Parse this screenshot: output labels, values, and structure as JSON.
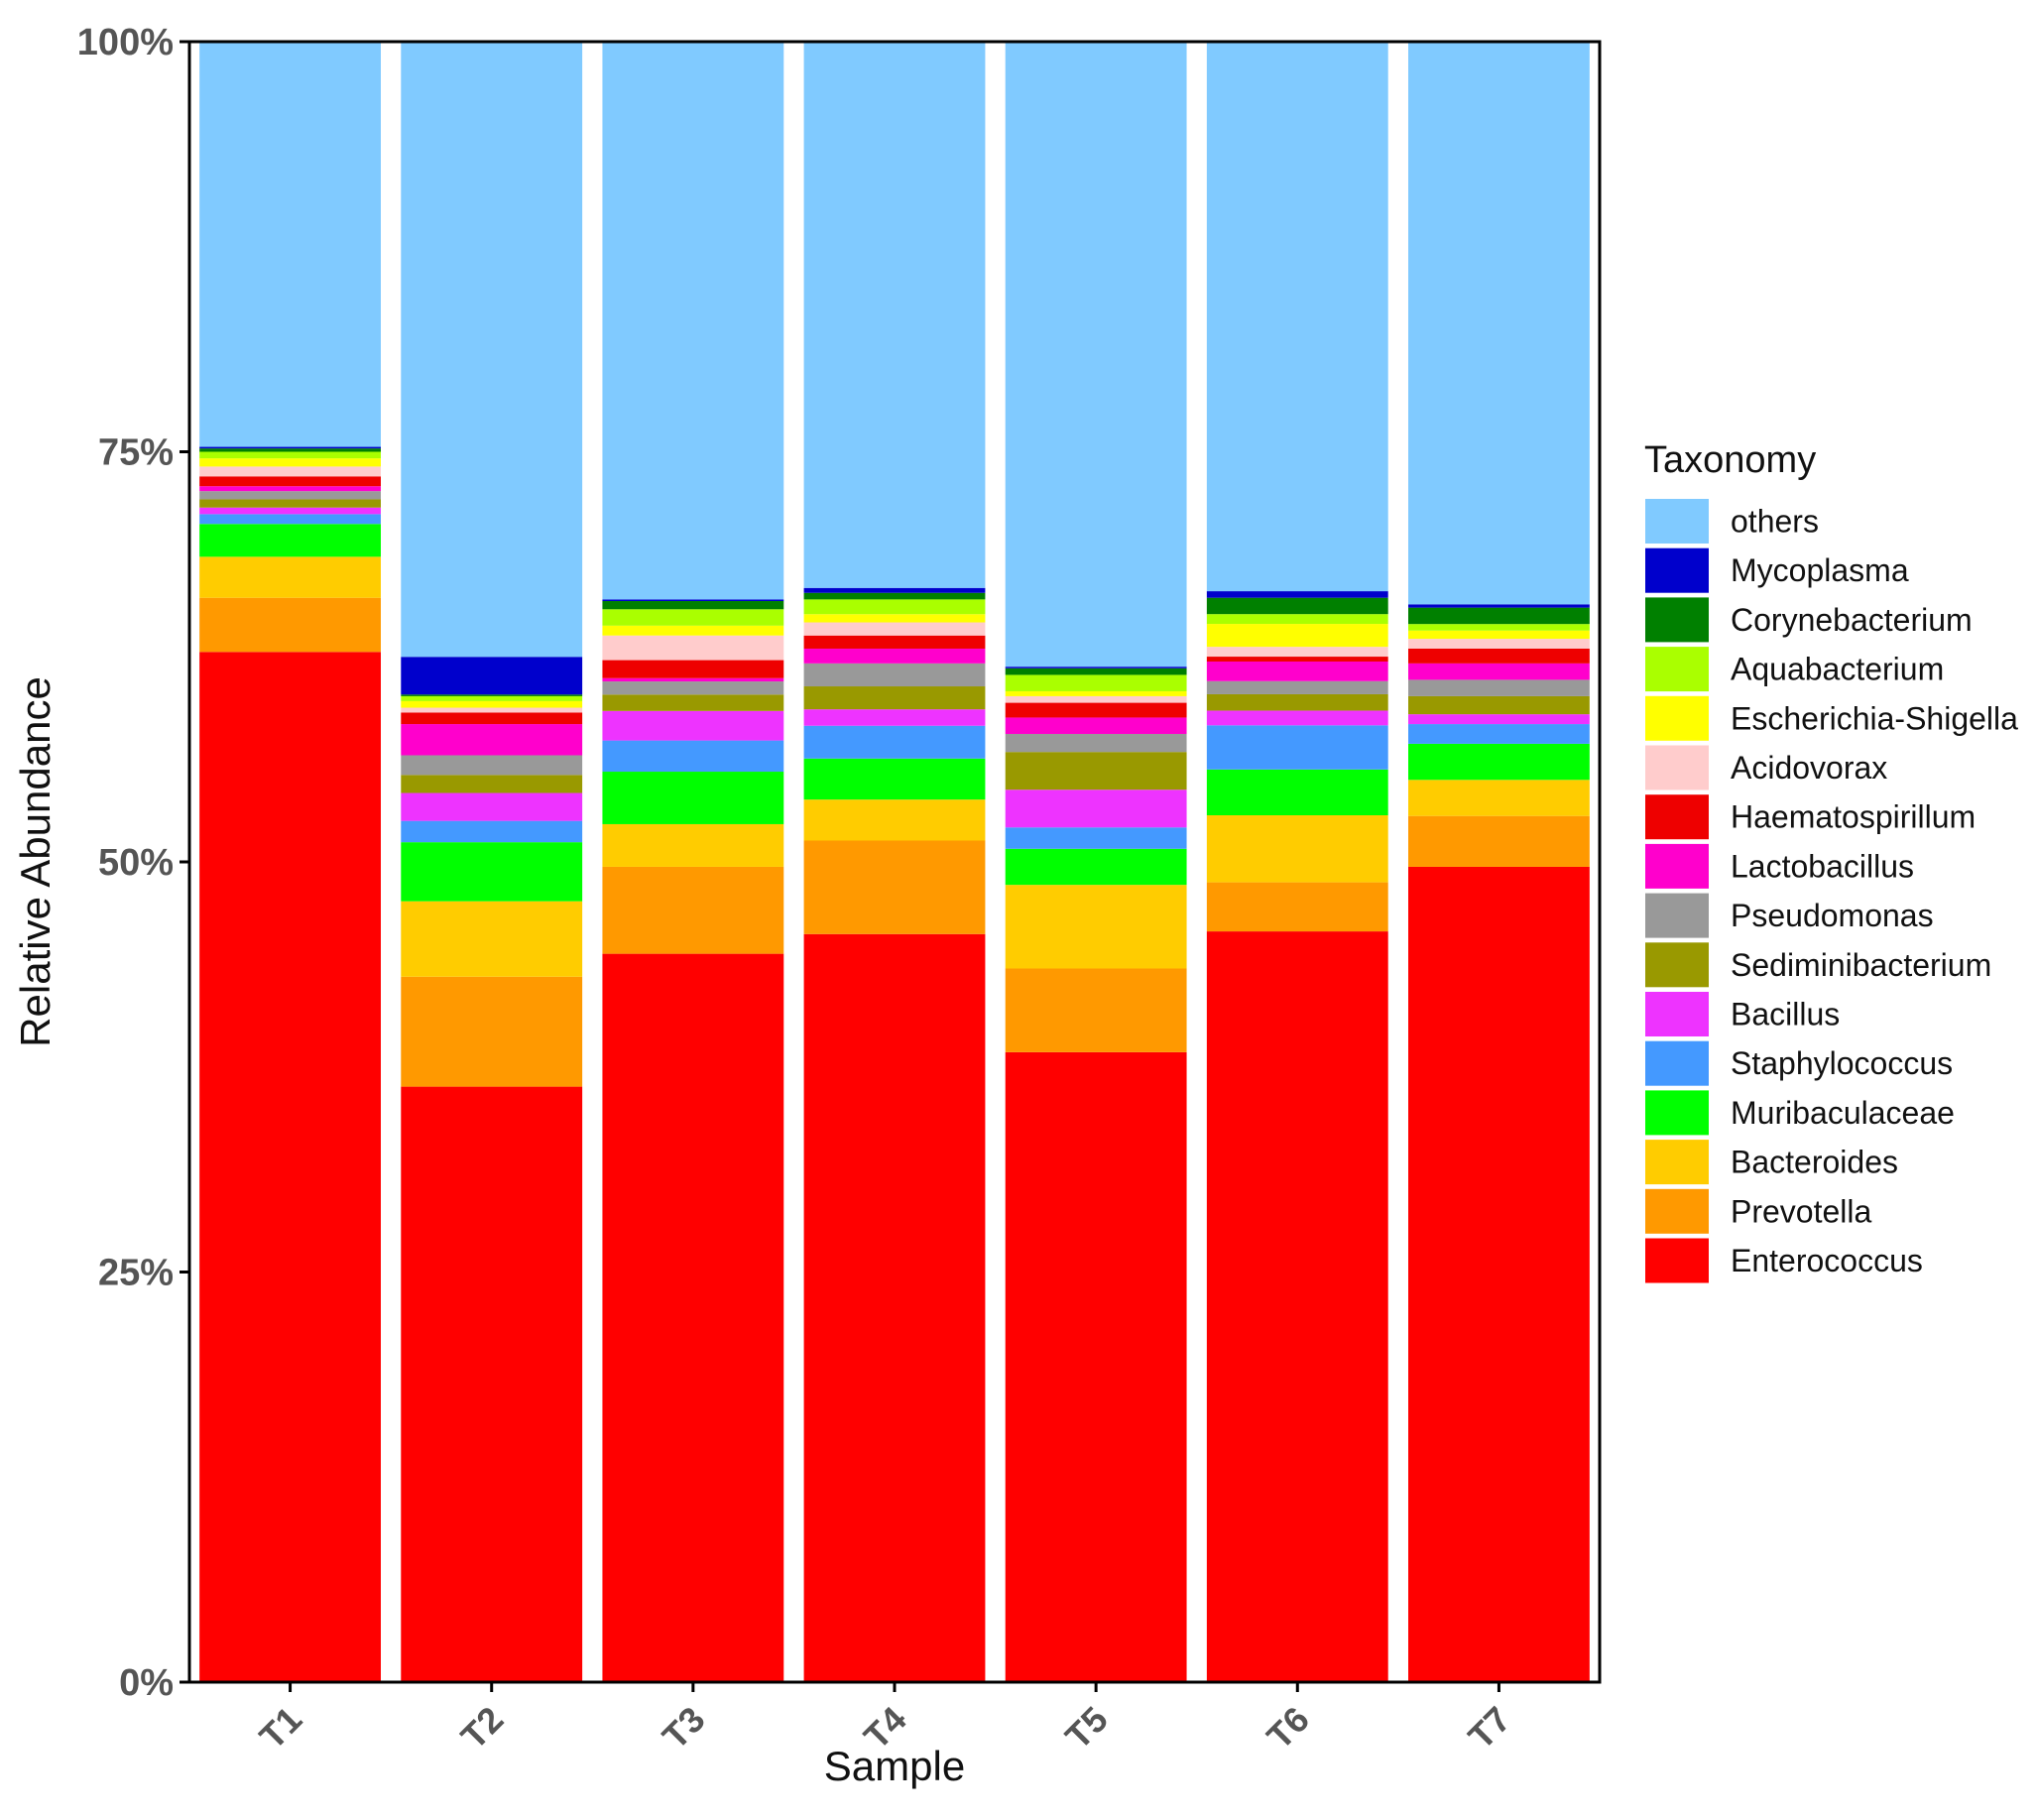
{
  "chart_data": {
    "type": "bar",
    "stacked": true,
    "xlabel": "Sample",
    "ylabel": "Relative Abundance",
    "ylim": [
      0,
      100
    ],
    "y_ticks": [
      "0%",
      "25%",
      "50%",
      "75%",
      "100%"
    ],
    "y_tick_values": [
      0,
      25,
      50,
      75,
      100
    ],
    "grid": false,
    "legend_position": "right",
    "legend_title": "Taxonomy",
    "categories": [
      "T1",
      "T2",
      "T3",
      "T4",
      "T5",
      "T6",
      "T7"
    ],
    "series": [
      {
        "name": "Enterococcus",
        "color": "#FF0000",
        "values": [
          62.8,
          36.3,
          44.4,
          45.6,
          38.4,
          45.9,
          49.7
        ]
      },
      {
        "name": "Prevotella",
        "color": "#FF9900",
        "values": [
          3.3,
          6.7,
          5.3,
          5.7,
          5.1,
          3.0,
          3.1
        ]
      },
      {
        "name": "Bacteroides",
        "color": "#FFCC00",
        "values": [
          2.5,
          4.6,
          2.6,
          2.5,
          5.1,
          4.1,
          2.2
        ]
      },
      {
        "name": "Muribaculaceae",
        "color": "#00FF00",
        "values": [
          2.0,
          3.6,
          3.2,
          2.5,
          2.2,
          2.8,
          2.2
        ]
      },
      {
        "name": "Staphylococcus",
        "color": "#4499FF",
        "values": [
          0.6,
          1.3,
          1.9,
          2.0,
          1.3,
          2.7,
          1.2
        ]
      },
      {
        "name": "Bacillus",
        "color": "#EE33FF",
        "values": [
          0.4,
          1.7,
          1.8,
          1.0,
          2.3,
          0.9,
          0.6
        ]
      },
      {
        "name": "Sediminibacterium",
        "color": "#999900",
        "values": [
          0.5,
          1.1,
          1.0,
          1.4,
          2.3,
          1.0,
          1.1
        ]
      },
      {
        "name": "Pseudomonas",
        "color": "#999999",
        "values": [
          0.5,
          1.2,
          0.8,
          1.4,
          1.1,
          0.8,
          1.0
        ]
      },
      {
        "name": "Lactobacillus",
        "color": "#FF00CC",
        "values": [
          0.3,
          1.9,
          0.2,
          0.9,
          1.0,
          1.2,
          1.0
        ]
      },
      {
        "name": "Haematospirillum",
        "color": "#EE0000",
        "values": [
          0.6,
          0.7,
          1.1,
          0.8,
          0.9,
          0.3,
          0.9
        ]
      },
      {
        "name": "Acidovorax",
        "color": "#FFCCCC",
        "values": [
          0.6,
          0.3,
          1.5,
          0.8,
          0.4,
          0.6,
          0.6
        ]
      },
      {
        "name": "Escherichia-Shigella",
        "color": "#FFFF00",
        "values": [
          0.5,
          0.4,
          0.6,
          0.5,
          0.3,
          1.4,
          0.5
        ]
      },
      {
        "name": "Aquabacterium",
        "color": "#AAFF00",
        "values": [
          0.4,
          0.3,
          1.0,
          0.9,
          1.0,
          0.6,
          0.4
        ]
      },
      {
        "name": "Corynebacterium",
        "color": "#008000",
        "values": [
          0.2,
          0.1,
          0.5,
          0.4,
          0.4,
          1.0,
          1.0
        ]
      },
      {
        "name": "Mycoplasma",
        "color": "#0000CC",
        "values": [
          0.1,
          2.3,
          0.1,
          0.3,
          0.1,
          0.4,
          0.2
        ]
      },
      {
        "name": "others",
        "color": "#80CAFF",
        "values": [
          24.7,
          37.5,
          34.0,
          33.3,
          38.1,
          33.6,
          34.3
        ]
      }
    ]
  }
}
